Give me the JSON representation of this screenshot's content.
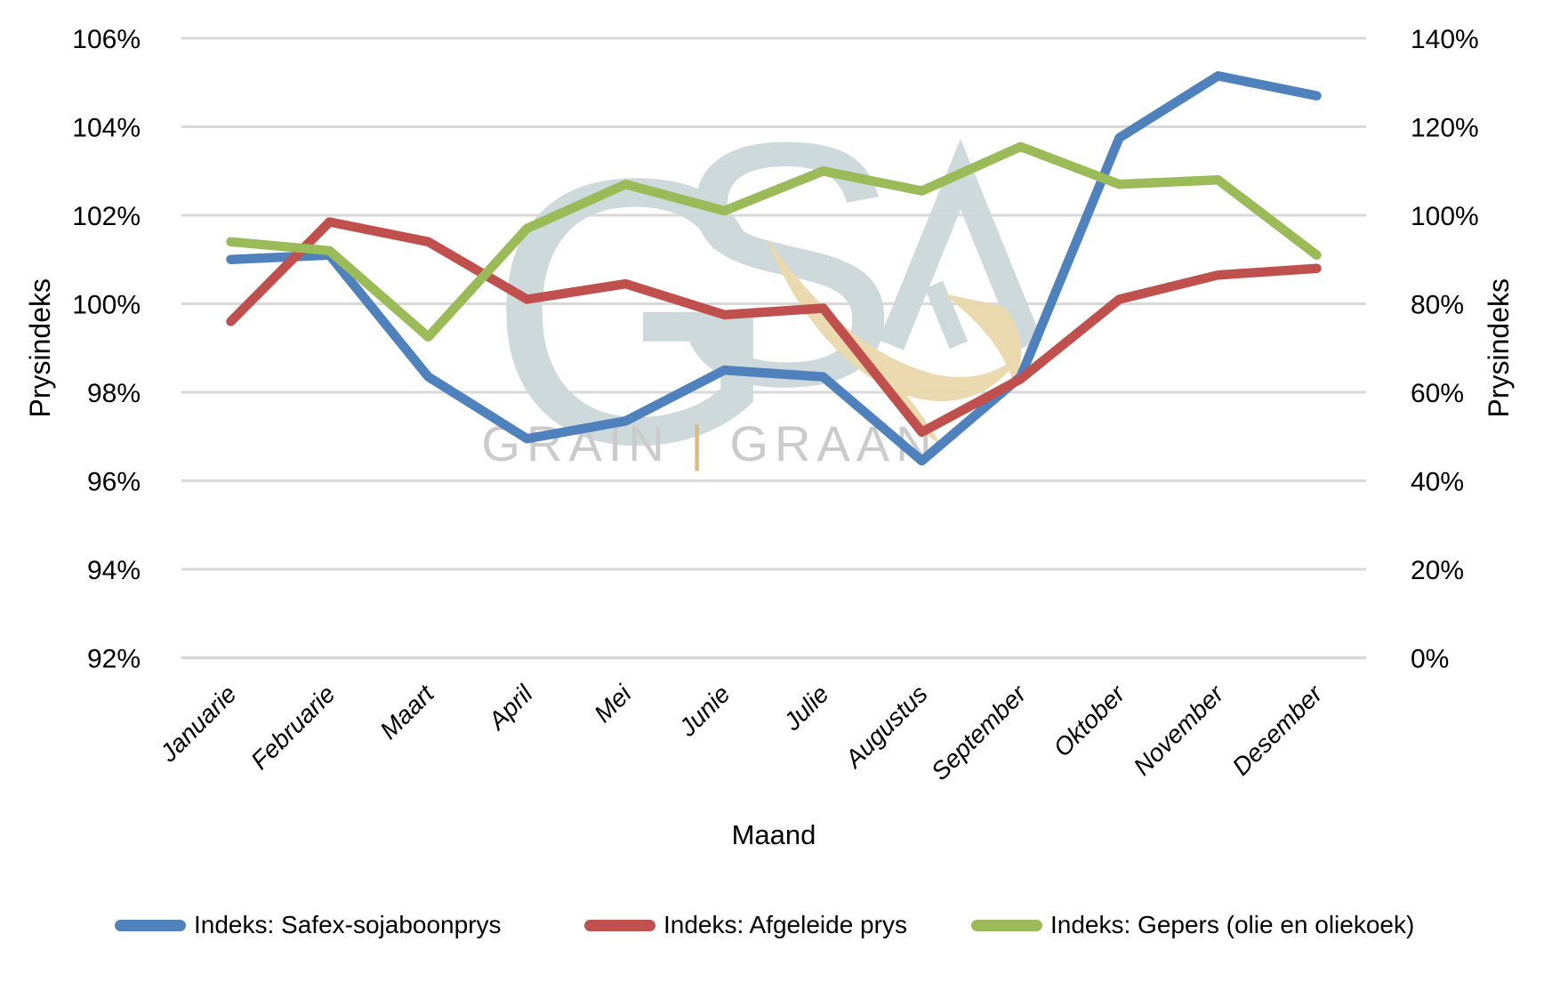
{
  "watermark": {
    "letter_g": "G",
    "letter_s": "S",
    "mark_color": "#ccd8da",
    "swoosh_color": "#ead7ab",
    "text_left": "GRAIN",
    "separator": "|",
    "separator_color": "#d9b97c",
    "text_right": "GRAAN",
    "text_color": "#c9c9c9"
  },
  "chart_data": {
    "type": "line",
    "title": "",
    "xlabel": "Maand",
    "ylabel_left": "Prysindeks",
    "ylabel_right": "Prysindeks",
    "grid": true,
    "grid_color": "#D9D9D9",
    "legend_position": "bottom",
    "background": "#FFFFFF",
    "categories": [
      "Januarie",
      "Februarie",
      "Maart",
      "April",
      "Mei",
      "Junie",
      "Julie",
      "Augustus",
      "September",
      "Oktober",
      "November",
      "Desember"
    ],
    "series": [
      {
        "name": "Indeks: Safex-sojaboonprys",
        "color": "#4F81BD",
        "values": [
          101.0,
          101.1,
          98.35,
          96.95,
          97.35,
          98.5,
          98.35,
          96.45,
          98.35,
          103.75,
          105.15,
          104.7
        ]
      },
      {
        "name": "Indeks: Afgeleide prys",
        "color": "#C0504D",
        "values": [
          99.6,
          101.85,
          101.4,
          100.1,
          100.45,
          99.75,
          99.9,
          97.1,
          98.3,
          100.1,
          100.65,
          100.8
        ]
      },
      {
        "name": "Indeks: Gepers (olie en oliekoek)",
        "color": "#9BBB59",
        "values": [
          101.4,
          101.2,
          99.25,
          101.7,
          102.7,
          102.1,
          103.0,
          102.55,
          103.55,
          102.7,
          102.8,
          101.1
        ]
      }
    ],
    "y_left": {
      "min": 92,
      "max": 106,
      "step": 2,
      "ticks": [
        "106%",
        "104%",
        "102%",
        "100%",
        "98%",
        "96%",
        "94%",
        "92%"
      ]
    },
    "y_right": {
      "min": 0,
      "max": 140,
      "step": 20,
      "ticks": [
        "140%",
        "120%",
        "100%",
        "80%",
        "60%",
        "40%",
        "20%",
        "0%"
      ]
    }
  }
}
